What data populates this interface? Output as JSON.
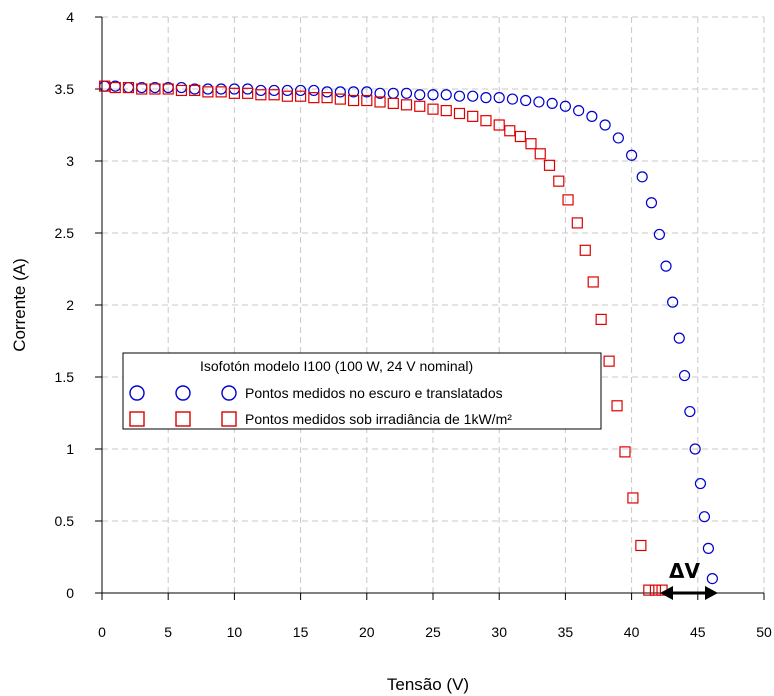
{
  "chart_data": {
    "type": "scatter",
    "xlabel": "Tensão (V)",
    "ylabel": "Corrente (A)",
    "xlim": [
      0,
      50
    ],
    "ylim": [
      0,
      4
    ],
    "xticks": [
      0,
      5,
      10,
      15,
      20,
      25,
      30,
      35,
      40,
      45,
      50
    ],
    "yticks": [
      0,
      0.5,
      1,
      1.5,
      2,
      2.5,
      3,
      3.5,
      4
    ],
    "ytick_labels": [
      "0",
      "0.5",
      "1",
      "1.5",
      "2",
      "2.5",
      "3",
      "3.5",
      "4"
    ],
    "grid": true,
    "legend": {
      "title": "Isofotón modelo I100 (100 W, 24 V nominal)",
      "placement": "center-left"
    },
    "annotation": "ΔV",
    "series": [
      {
        "name": "Pontos medidos no escuro e translatados",
        "marker": "circle",
        "color": "#0000cc",
        "x": [
          0.2,
          1.0,
          2.0,
          3.0,
          4.0,
          5.0,
          6.0,
          7.0,
          8.0,
          9.0,
          10.0,
          11.0,
          12.0,
          13.0,
          14.0,
          15.0,
          16.0,
          17.0,
          18.0,
          19.0,
          20.0,
          21.0,
          22.0,
          23.0,
          24.0,
          25.0,
          26.0,
          27.0,
          28.0,
          29.0,
          30.0,
          31.0,
          32.0,
          33.0,
          34.0,
          35.0,
          36.0,
          37.0,
          38.0,
          39.0,
          40.0,
          40.8,
          41.5,
          42.1,
          42.6,
          43.1,
          43.6,
          44.0,
          44.4,
          44.8,
          45.2,
          45.5,
          45.8,
          46.1
        ],
        "y": [
          3.52,
          3.52,
          3.51,
          3.51,
          3.51,
          3.51,
          3.51,
          3.5,
          3.5,
          3.5,
          3.5,
          3.5,
          3.49,
          3.49,
          3.49,
          3.49,
          3.49,
          3.48,
          3.48,
          3.48,
          3.48,
          3.47,
          3.47,
          3.47,
          3.46,
          3.46,
          3.46,
          3.45,
          3.45,
          3.44,
          3.44,
          3.43,
          3.42,
          3.41,
          3.4,
          3.38,
          3.35,
          3.31,
          3.25,
          3.16,
          3.04,
          2.89,
          2.71,
          2.49,
          2.27,
          2.02,
          1.77,
          1.51,
          1.26,
          1.0,
          0.76,
          0.53,
          0.31,
          0.1
        ]
      },
      {
        "name": "Pontos medidos sob irradiância de 1kW/m²",
        "marker": "square",
        "color": "#dd0000",
        "x": [
          0.2,
          1.0,
          2.0,
          3.0,
          4.0,
          5.0,
          6.0,
          7.0,
          8.0,
          9.0,
          10.0,
          11.0,
          12.0,
          13.0,
          14.0,
          15.0,
          16.0,
          17.0,
          18.0,
          19.0,
          20.0,
          21.0,
          22.0,
          23.0,
          24.0,
          25.0,
          26.0,
          27.0,
          28.0,
          29.0,
          30.0,
          30.8,
          31.6,
          32.4,
          33.1,
          33.8,
          34.5,
          35.2,
          35.9,
          36.5,
          37.1,
          37.7,
          38.3,
          38.9,
          39.5,
          40.1,
          40.7,
          41.3,
          41.8,
          42.3
        ],
        "y": [
          3.52,
          3.51,
          3.51,
          3.5,
          3.5,
          3.5,
          3.49,
          3.49,
          3.48,
          3.48,
          3.47,
          3.47,
          3.46,
          3.46,
          3.45,
          3.45,
          3.44,
          3.44,
          3.43,
          3.42,
          3.42,
          3.41,
          3.4,
          3.39,
          3.38,
          3.36,
          3.35,
          3.33,
          3.31,
          3.28,
          3.25,
          3.21,
          3.17,
          3.12,
          3.05,
          2.97,
          2.86,
          2.73,
          2.57,
          2.38,
          2.16,
          1.9,
          1.61,
          1.3,
          0.98,
          0.66,
          0.33,
          0.02,
          0.02,
          0.02
        ]
      }
    ]
  }
}
